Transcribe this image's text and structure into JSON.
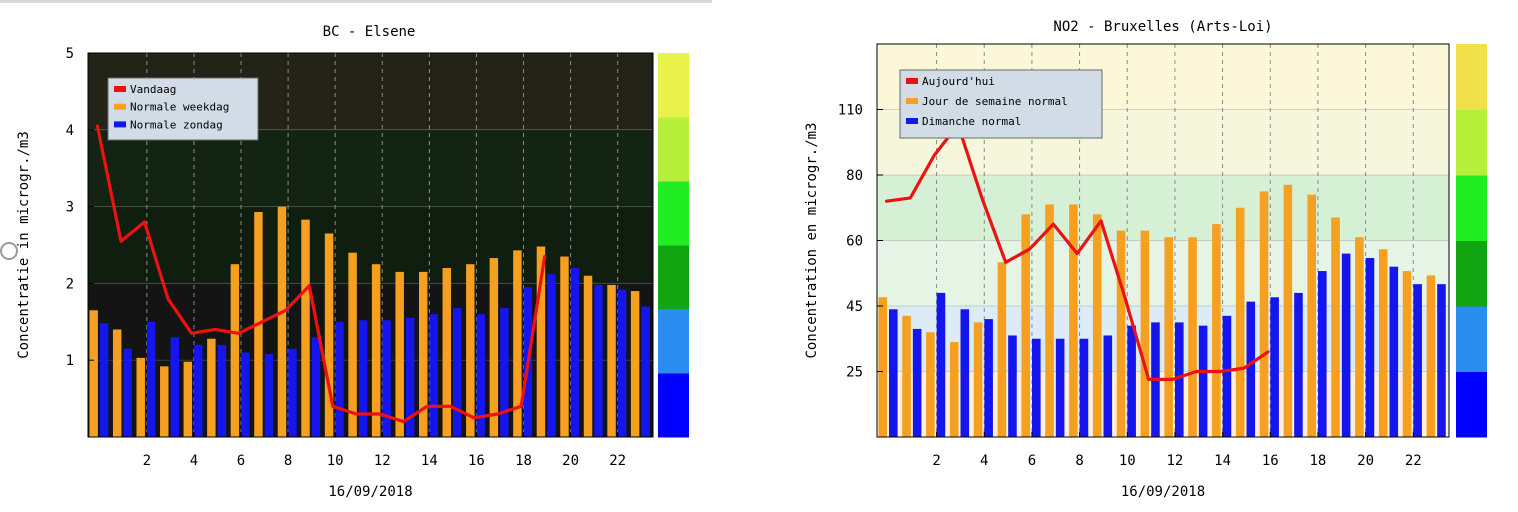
{
  "colors": {
    "today": "#ee1111",
    "weekday": "#f5a020",
    "sunday": "#1515ee",
    "grid": "#8a8a8a",
    "axis_text": "#000000"
  },
  "chart_data": [
    {
      "type": "bar",
      "title": "BC - Elsene",
      "xlabel": "16/09/2018",
      "ylabel": "Concentratie in microgr./m3",
      "x_hours": [
        0,
        1,
        2,
        3,
        4,
        5,
        6,
        7,
        8,
        9,
        10,
        11,
        12,
        13,
        14,
        15,
        16,
        17,
        18,
        19,
        20,
        21,
        22,
        23
      ],
      "x_tick_labels": [
        "2",
        "4",
        "6",
        "8",
        "10",
        "12",
        "14",
        "16",
        "18",
        "20",
        "22"
      ],
      "y_ticks": [
        1,
        2,
        3,
        4,
        5
      ],
      "ylim": [
        0,
        5
      ],
      "legend_position": "top-left",
      "background_bands": [
        {
          "from": 0,
          "to": 2,
          "color": "#141414"
        },
        {
          "from": 2,
          "to": 3,
          "color": "#0f1e0f"
        },
        {
          "from": 3,
          "to": 4,
          "color": "#132413"
        },
        {
          "from": 4,
          "to": 5,
          "color": "#232317"
        }
      ],
      "scale_bar": [
        "#0000ff",
        "#2a8ef0",
        "#11a611",
        "#22ec22",
        "#b7f03a",
        "#e9f24a"
      ],
      "series": [
        {
          "name": "Vandaag",
          "kind": "line",
          "color_key": "today",
          "values": [
            4.05,
            2.55,
            2.8,
            1.8,
            1.35,
            1.4,
            1.35,
            1.5,
            1.65,
            1.97,
            0.4,
            0.3,
            0.3,
            0.2,
            0.4,
            0.4,
            0.25,
            0.3,
            0.4,
            2.35
          ]
        },
        {
          "name": "Normale weekdag",
          "kind": "bar",
          "color_key": "weekday",
          "values": [
            1.65,
            1.4,
            1.03,
            0.92,
            0.98,
            1.28,
            2.25,
            2.93,
            3.0,
            2.83,
            2.65,
            2.4,
            2.25,
            2.15,
            2.15,
            2.2,
            2.25,
            2.33,
            2.43,
            2.48,
            2.35,
            2.1,
            1.98,
            1.9
          ]
        },
        {
          "name": "Normale zondag",
          "kind": "bar",
          "color_key": "sunday",
          "values": [
            1.48,
            1.15,
            1.5,
            1.3,
            1.2,
            1.2,
            1.1,
            1.08,
            1.15,
            1.3,
            1.5,
            1.52,
            1.52,
            1.55,
            1.6,
            1.68,
            1.6,
            1.68,
            1.95,
            2.12,
            2.2,
            1.98,
            1.92,
            1.7
          ]
        }
      ]
    },
    {
      "type": "bar",
      "title": "NO2 - Bruxelles (Arts-Loi)",
      "xlabel": "16/09/2018",
      "ylabel": "Concentration en microgr./m3",
      "x_hours": [
        0,
        1,
        2,
        3,
        4,
        5,
        6,
        7,
        8,
        9,
        10,
        11,
        12,
        13,
        14,
        15,
        16,
        17,
        18,
        19,
        20,
        21,
        22,
        23
      ],
      "x_tick_labels": [
        "2",
        "4",
        "6",
        "8",
        "10",
        "12",
        "14",
        "16",
        "18",
        "20",
        "22"
      ],
      "y_ticks": [
        25,
        45,
        60,
        80,
        110
      ],
      "y_scale": "piecewise",
      "y_breaks": [
        0,
        25,
        45,
        60,
        80,
        110,
        140
      ],
      "legend_position": "top-left",
      "background_bands": [
        {
          "from": 0,
          "to": 25,
          "color": "#fdf0dc"
        },
        {
          "from": 25,
          "to": 45,
          "color": "#dcecf7"
        },
        {
          "from": 45,
          "to": 60,
          "color": "#e6f4e6"
        },
        {
          "from": 60,
          "to": 80,
          "color": "#d6f0d6"
        },
        {
          "from": 80,
          "to": 110,
          "color": "#f6f6dc"
        },
        {
          "from": 110,
          "to": 140,
          "color": "#fbf7d8"
        }
      ],
      "scale_bar": [
        "#0000ff",
        "#2a8ef0",
        "#11a611",
        "#22ec22",
        "#b7f03a",
        "#f2e04a"
      ],
      "series": [
        {
          "name": "Aujourd'hui",
          "kind": "line",
          "color_key": "today",
          "values": [
            72,
            73,
            89,
            103,
            73,
            55,
            58,
            65,
            57,
            66,
            47,
            22,
            22,
            25,
            25,
            26,
            31
          ]
        },
        {
          "name": "Jour de semaine normal",
          "kind": "bar",
          "color_key": "weekday",
          "values": [
            47,
            42,
            37,
            34,
            40,
            55,
            68,
            71,
            71,
            68,
            63,
            63,
            61,
            61,
            65,
            70,
            75,
            77,
            74,
            67,
            61,
            58,
            53,
            52
          ]
        },
        {
          "name": "Dimanche normal",
          "kind": "bar",
          "color_key": "sunday",
          "values": [
            44,
            38,
            48,
            44,
            41,
            36,
            35,
            35,
            35,
            36,
            39,
            40,
            40,
            39,
            42,
            46,
            47,
            48,
            53,
            57,
            56,
            54,
            50,
            50
          ]
        }
      ]
    }
  ]
}
